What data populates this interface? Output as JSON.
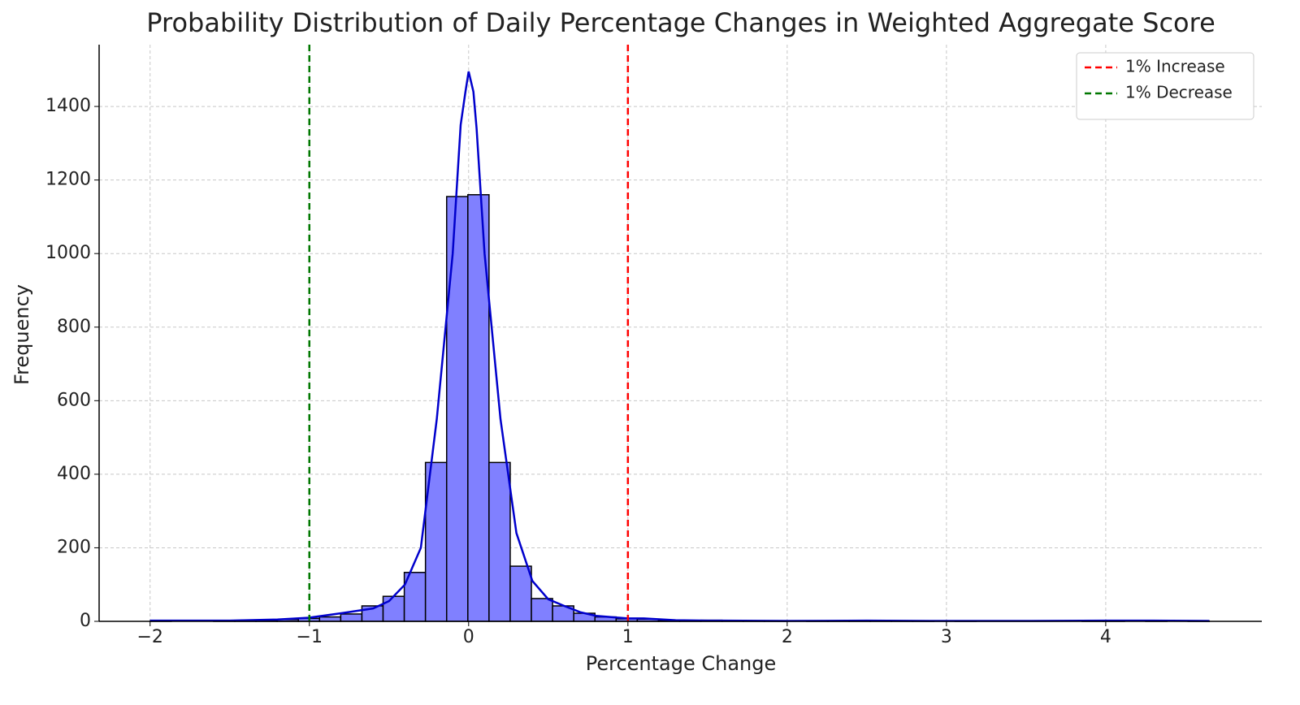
{
  "chart_data": {
    "type": "histogram",
    "title": "Probability Distribution of Daily Percentage Changes in Weighted Aggregate Score",
    "x_label": "Percentage Change",
    "y_label": "Frequency",
    "bins": [
      -2,
      -1.867,
      -1.734,
      -1.601,
      -1.468,
      -1.335,
      -1.202,
      -1.069,
      -0.936,
      -0.803,
      -0.67,
      -0.537,
      -0.404,
      -0.271,
      -0.138,
      -0.005,
      0.128,
      0.261,
      0.394,
      0.527,
      0.66,
      0.793,
      0.926,
      1.059,
      1.192,
      1.325,
      1.458,
      1.591,
      1.724,
      1.857,
      1.99,
      2.123,
      2.256,
      2.389,
      2.522,
      2.655,
      2.788,
      2.921,
      3.054,
      3.187,
      3.32,
      3.453,
      3.586,
      3.719,
      3.852,
      3.985,
      4.118,
      4.251,
      4.384,
      4.517,
      4.65
    ],
    "counts": [
      1,
      0,
      0,
      1,
      1,
      2,
      5,
      8,
      12,
      20,
      42,
      68,
      133,
      432,
      1155,
      1160,
      432,
      150,
      62,
      42,
      22,
      12,
      7,
      6,
      3,
      2,
      3,
      1,
      1,
      1,
      0,
      1,
      1,
      1,
      1,
      1,
      1,
      0,
      1,
      0,
      0,
      0,
      0,
      0,
      1,
      1,
      0,
      1,
      0,
      1
    ],
    "color": "#8080ff",
    "edgecolor": "#000000",
    "kde": {
      "color": "#0000cc",
      "x": [
        -2,
        -1.5,
        -1.2,
        -1,
        -0.8,
        -0.6,
        -0.5,
        -0.4,
        -0.3,
        -0.2,
        -0.1,
        -0.05,
        -0.02,
        0,
        0.03,
        0.05,
        0.1,
        0.2,
        0.3,
        0.4,
        0.5,
        0.6,
        0.7,
        0.8,
        1,
        1.1,
        1.3,
        1.5,
        2,
        2.5,
        3,
        3.5,
        4,
        4.3,
        4.65
      ],
      "y": [
        2,
        2,
        5,
        10,
        22,
        35,
        55,
        100,
        200,
        550,
        1000,
        1350,
        1440,
        1495,
        1440,
        1340,
        1000,
        550,
        240,
        110,
        60,
        42,
        25,
        15,
        8,
        8,
        3,
        2,
        1,
        2,
        1,
        1,
        2,
        2,
        1
      ]
    },
    "lines": [
      {
        "name": "1% Increase",
        "color": "#ff0000",
        "x": 1
      },
      {
        "name": "1% Decrease",
        "color": "#007700",
        "x": -1
      }
    ],
    "xlim": [
      -2.32,
      4.98
    ],
    "ylim": [
      0,
      1568
    ],
    "xticks": [
      {
        "value": -2,
        "label": "−2"
      },
      {
        "value": -1,
        "label": "−1"
      },
      0,
      1,
      2,
      3,
      4
    ],
    "yticks": [
      0,
      200,
      400,
      600,
      800,
      1000,
      1200,
      1400
    ],
    "grid": true,
    "legend": "upper right"
  }
}
